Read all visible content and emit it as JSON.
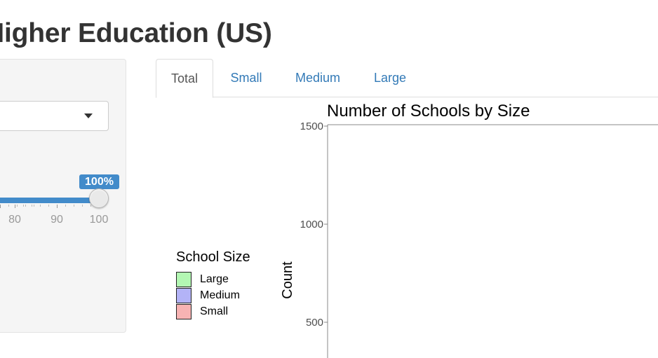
{
  "page": {
    "title": "Higher Education (US)"
  },
  "sidebar": {
    "select": {
      "value": "",
      "icon": "caret-down-icon"
    },
    "slider": {
      "value_label": "100%",
      "value": 100,
      "tick_labels": [
        "80",
        "90",
        "100"
      ],
      "accent_color": "#428bca"
    }
  },
  "tabs": [
    {
      "label": "Total",
      "active": true
    },
    {
      "label": "Small",
      "active": false
    },
    {
      "label": "Medium",
      "active": false
    },
    {
      "label": "Large",
      "active": false
    }
  ],
  "legend": {
    "title": "School Size",
    "entries": [
      {
        "label": "Large",
        "color": "#b3f7b3"
      },
      {
        "label": "Medium",
        "color": "#b3b3f7"
      },
      {
        "label": "Small",
        "color": "#f7b3b3"
      }
    ]
  },
  "chart_data": {
    "type": "bar",
    "title": "Number of Schools by Size",
    "xlabel": "",
    "ylabel": "Count",
    "yticks": [
      {
        "value": 500,
        "label": "500"
      },
      {
        "value": 1000,
        "label": "1000"
      },
      {
        "value": 1500,
        "label": "1500"
      }
    ],
    "ylim": [
      0,
      1500
    ],
    "categories": [],
    "series": [
      {
        "name": "Large",
        "values": []
      },
      {
        "name": "Medium",
        "values": []
      },
      {
        "name": "Small",
        "values": []
      }
    ]
  }
}
